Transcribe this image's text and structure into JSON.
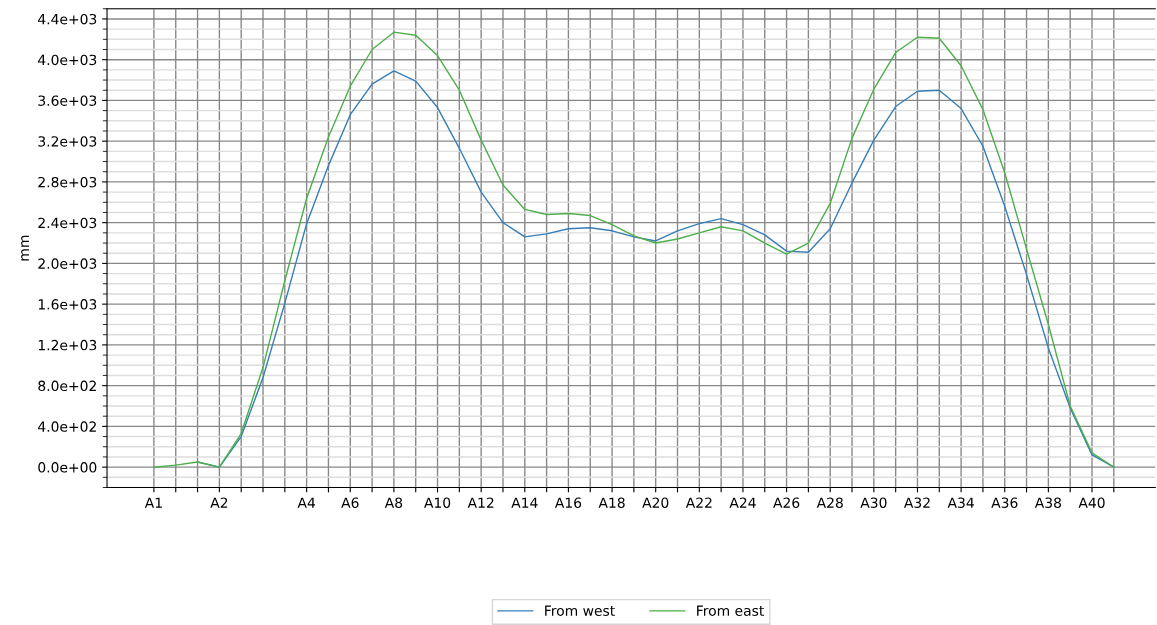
{
  "chart_data": {
    "type": "line",
    "ylabel": "mm",
    "grid": true,
    "legend": "bottom",
    "marker": "none",
    "line_style": "solid",
    "ylim": [
      -200,
      4500
    ],
    "categories": [
      "A1",
      null,
      null,
      "A2",
      null,
      null,
      null,
      "A4",
      null,
      "A6",
      null,
      "A8",
      null,
      "A10",
      null,
      "A12",
      null,
      "A14",
      null,
      "A16",
      null,
      "A18",
      null,
      "A20",
      null,
      "A22",
      null,
      "A24",
      null,
      "A26",
      null,
      "A28",
      null,
      "A30",
      null,
      "A32",
      null,
      "A34",
      null,
      "A36",
      null,
      "A38",
      null,
      "A40",
      null
    ],
    "yticks": [
      {
        "value": 0,
        "label": "0.0e+00"
      },
      {
        "value": 400,
        "label": "4.0e+02"
      },
      {
        "value": 800,
        "label": "8.0e+02"
      },
      {
        "value": 1200,
        "label": "1.2e+03"
      },
      {
        "value": 1600,
        "label": "1.6e+03"
      },
      {
        "value": 2000,
        "label": "2.0e+03"
      },
      {
        "value": 2400,
        "label": "2.4e+03"
      },
      {
        "value": 2800,
        "label": "2.8e+03"
      },
      {
        "value": 3200,
        "label": "3.2e+03"
      },
      {
        "value": 3600,
        "label": "3.6e+03"
      },
      {
        "value": 4000,
        "label": "4.0e+03"
      },
      {
        "value": 4400,
        "label": "4.4e+03"
      }
    ],
    "series": [
      {
        "name": "From west",
        "color": "#377eb8",
        "values": [
          null,
          null,
          50,
          0,
          300,
          880,
          1610,
          2390,
          2960,
          3460,
          3760,
          3890,
          3790,
          3530,
          3130,
          2700,
          2400,
          2260,
          2290,
          2340,
          2350,
          2320,
          2260,
          2220,
          2320,
          2390,
          2440,
          2380,
          2280,
          2120,
          2110,
          2340,
          2790,
          3210,
          3540,
          3690,
          3700,
          3520,
          3150,
          2560,
          1890,
          1170,
          580,
          120,
          0
        ]
      },
      {
        "name": "From east",
        "color": "#4daf4a",
        "values": [
          0,
          20,
          50,
          0,
          330,
          980,
          1830,
          2640,
          3240,
          3740,
          4100,
          4270,
          4240,
          4040,
          3700,
          3210,
          2770,
          2530,
          2480,
          2490,
          2470,
          2380,
          2270,
          2200,
          2240,
          2300,
          2360,
          2320,
          2200,
          2090,
          2200,
          2590,
          3230,
          3710,
          4070,
          4220,
          4210,
          3940,
          3510,
          2890,
          2140,
          1400,
          600,
          140,
          0
        ]
      }
    ]
  }
}
